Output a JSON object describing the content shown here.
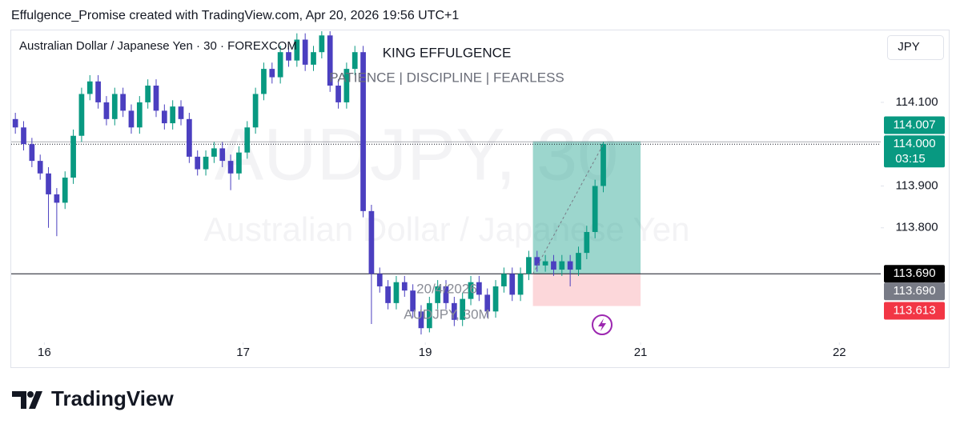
{
  "chart_data": {
    "type": "candlestick",
    "header": "Effulgence_Promise created with TradingView.com, Apr 20, 2026 19:56 UTC+1",
    "title": "Australian Dollar / Japanese Yen · 30 · FOREXCOM",
    "annotations": [
      "KING EFFULGENCE",
      "PATIENCE | DISCIPLINE | FEARLESS",
      "20/4/2026",
      "AUDJPY, 30M"
    ],
    "watermark": [
      "AUDJPY, 30",
      "Australian Dollar / Japanese Yen"
    ],
    "currency": "JPY",
    "countdown": "03:15",
    "brand": "TradingView",
    "up_color": "#089981",
    "down_color": "#4b3fc0",
    "x": [
      -7,
      -5,
      -3,
      -1,
      1,
      3,
      5,
      7,
      9,
      11,
      13,
      15,
      17,
      19,
      21,
      23,
      25,
      27,
      29,
      31,
      33,
      35,
      37,
      39,
      41,
      43,
      45,
      47,
      49,
      51,
      53,
      55,
      57,
      59,
      61,
      63,
      65,
      67,
      69,
      71,
      73,
      75,
      77,
      79,
      81,
      83,
      85,
      87,
      89,
      91,
      93,
      95,
      97,
      99,
      101,
      103,
      105,
      107,
      109,
      111,
      113,
      115,
      117,
      119,
      121,
      123,
      125,
      127,
      129,
      131,
      133,
      135
    ],
    "open": [
      114.06,
      114.04,
      114.0,
      113.96,
      113.93,
      113.88,
      113.86,
      113.92,
      114.02,
      114.12,
      114.15,
      114.1,
      114.06,
      114.12,
      114.08,
      114.04,
      114.1,
      114.14,
      114.08,
      114.05,
      114.09,
      114.06,
      113.97,
      113.94,
      113.97,
      113.99,
      113.96,
      113.93,
      113.98,
      114.04,
      114.12,
      114.18,
      114.16,
      114.22,
      114.2,
      114.25,
      114.19,
      114.22,
      114.26,
      114.14,
      114.1,
      114.18,
      114.22,
      113.84,
      113.69,
      113.66,
      113.62,
      113.67,
      113.65,
      113.6,
      113.56,
      113.62,
      113.66,
      113.62,
      113.58,
      113.63,
      113.67,
      113.64,
      113.6,
      113.66,
      113.69,
      113.64,
      113.69,
      113.73,
      113.71,
      113.72,
      113.7,
      113.72,
      113.7,
      113.74,
      113.79,
      113.9
    ],
    "high": [
      114.075,
      114.055,
      114.015,
      113.975,
      113.945,
      113.895,
      113.935,
      114.035,
      114.135,
      114.165,
      114.165,
      114.115,
      114.135,
      114.135,
      114.095,
      114.115,
      114.155,
      114.155,
      114.095,
      114.105,
      114.105,
      114.075,
      113.985,
      113.985,
      114.005,
      114.005,
      113.975,
      113.995,
      114.055,
      114.135,
      114.195,
      114.195,
      114.235,
      114.235,
      114.265,
      114.265,
      114.235,
      114.27,
      114.27,
      114.155,
      114.195,
      114.235,
      114.235,
      113.855,
      113.705,
      113.675,
      113.685,
      113.685,
      113.665,
      113.615,
      113.635,
      113.675,
      113.675,
      113.635,
      113.645,
      113.685,
      113.685,
      113.655,
      113.675,
      113.705,
      113.705,
      113.705,
      113.745,
      113.745,
      113.735,
      113.735,
      113.735,
      113.735,
      113.755,
      113.805,
      113.915,
      114.005
    ],
    "low": [
      114.025,
      113.985,
      113.945,
      113.915,
      113.8,
      113.78,
      113.845,
      113.905,
      114.005,
      114.105,
      114.085,
      114.045,
      114.045,
      114.065,
      114.025,
      114.025,
      114.085,
      114.065,
      114.035,
      114.035,
      114.045,
      113.955,
      113.925,
      113.925,
      113.955,
      113.945,
      113.89,
      113.915,
      113.965,
      114.025,
      114.105,
      114.145,
      114.145,
      114.185,
      114.185,
      114.175,
      114.175,
      114.205,
      114.125,
      114.085,
      114.085,
      114.165,
      113.825,
      113.57,
      113.645,
      113.605,
      113.605,
      113.635,
      113.585,
      113.545,
      113.55,
      113.605,
      113.605,
      113.565,
      113.565,
      113.615,
      113.625,
      113.585,
      113.585,
      113.645,
      113.625,
      113.625,
      113.675,
      113.695,
      113.695,
      113.685,
      113.685,
      113.66,
      113.685,
      113.725,
      113.775,
      113.885
    ],
    "close": [
      114.04,
      114.0,
      113.96,
      113.93,
      113.88,
      113.86,
      113.92,
      114.02,
      114.12,
      114.15,
      114.1,
      114.06,
      114.12,
      114.08,
      114.04,
      114.1,
      114.14,
      114.08,
      114.05,
      114.09,
      114.06,
      113.97,
      113.94,
      113.97,
      113.99,
      113.96,
      113.93,
      113.98,
      114.04,
      114.12,
      114.18,
      114.16,
      114.22,
      114.2,
      114.25,
      114.19,
      114.22,
      114.26,
      114.14,
      114.1,
      114.18,
      114.22,
      113.84,
      113.69,
      113.66,
      113.62,
      113.67,
      113.65,
      113.6,
      113.56,
      113.62,
      113.66,
      113.62,
      113.58,
      113.63,
      113.67,
      113.64,
      113.6,
      113.66,
      113.69,
      113.64,
      113.69,
      113.73,
      113.71,
      113.72,
      113.7,
      113.72,
      113.7,
      113.74,
      113.79,
      113.9,
      114.0
    ],
    "xlim": [
      -8,
      202
    ],
    "ylim": [
      113.526,
      114.272
    ],
    "xticks": [
      {
        "value": 0,
        "label": "16"
      },
      {
        "value": 48,
        "label": "17"
      },
      {
        "value": 92,
        "label": "19"
      },
      {
        "value": 144,
        "label": "21"
      },
      {
        "value": 192,
        "label": "22"
      }
    ],
    "yticks": [
      {
        "value": 114.1,
        "label": "114.100"
      },
      {
        "value": 113.9,
        "label": "113.900"
      },
      {
        "value": 113.8,
        "label": "113.800"
      }
    ],
    "position": {
      "x": [
        118,
        144
      ],
      "entry": 113.69,
      "target": 114.007,
      "stop": 113.613
    },
    "last_price": 114.0,
    "price_labels": [
      {
        "value": 114.007,
        "label": "114.007",
        "color": "#089981"
      },
      {
        "value": 114.0,
        "label": "114.000",
        "color": "#089981"
      },
      {
        "value": 113.69,
        "label": "113.690",
        "color": "#000000"
      },
      {
        "value": 113.69,
        "label": "113.690",
        "color": "#787b86"
      },
      {
        "value": 113.613,
        "label": "113.613",
        "color": "#f23645"
      }
    ]
  }
}
